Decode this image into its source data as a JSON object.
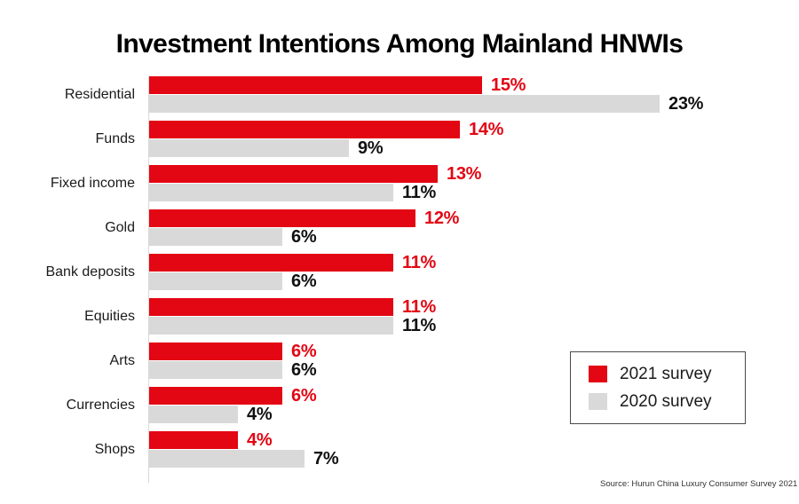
{
  "title": "Investment Intentions Among Mainland HNWIs",
  "source": "Source: Hurun China Luxury Consumer Survey 2021",
  "colors": {
    "red": "#e30613",
    "gray": "#d9d9d9",
    "value_black": "#111111",
    "axis": "#d8d8d8"
  },
  "legend": {
    "items": [
      {
        "label": "2021 survey",
        "color": "#e30613"
      },
      {
        "label": "2020 survey",
        "color": "#d9d9d9"
      }
    ]
  },
  "chart_data": {
    "type": "bar",
    "orientation": "horizontal",
    "title": "Investment Intentions Among Mainland HNWIs",
    "categories": [
      "Residential",
      "Funds",
      "Fixed income",
      "Gold",
      "Bank deposits",
      "Equities",
      "Arts",
      "Currencies",
      "Shops"
    ],
    "series": [
      {
        "name": "2021 survey",
        "color": "#e30613",
        "values": [
          15,
          14,
          13,
          12,
          11,
          11,
          6,
          6,
          4
        ]
      },
      {
        "name": "2020 survey",
        "color": "#d9d9d9",
        "values": [
          23,
          9,
          11,
          6,
          6,
          11,
          6,
          4,
          7
        ]
      }
    ],
    "value_suffix": "%",
    "value_labels_shown": true,
    "xlim": [
      0,
      24
    ],
    "grid": false,
    "legend_position": "bottom-right",
    "source_note": "Source: Hurun China Luxury Consumer Survey 2021"
  }
}
